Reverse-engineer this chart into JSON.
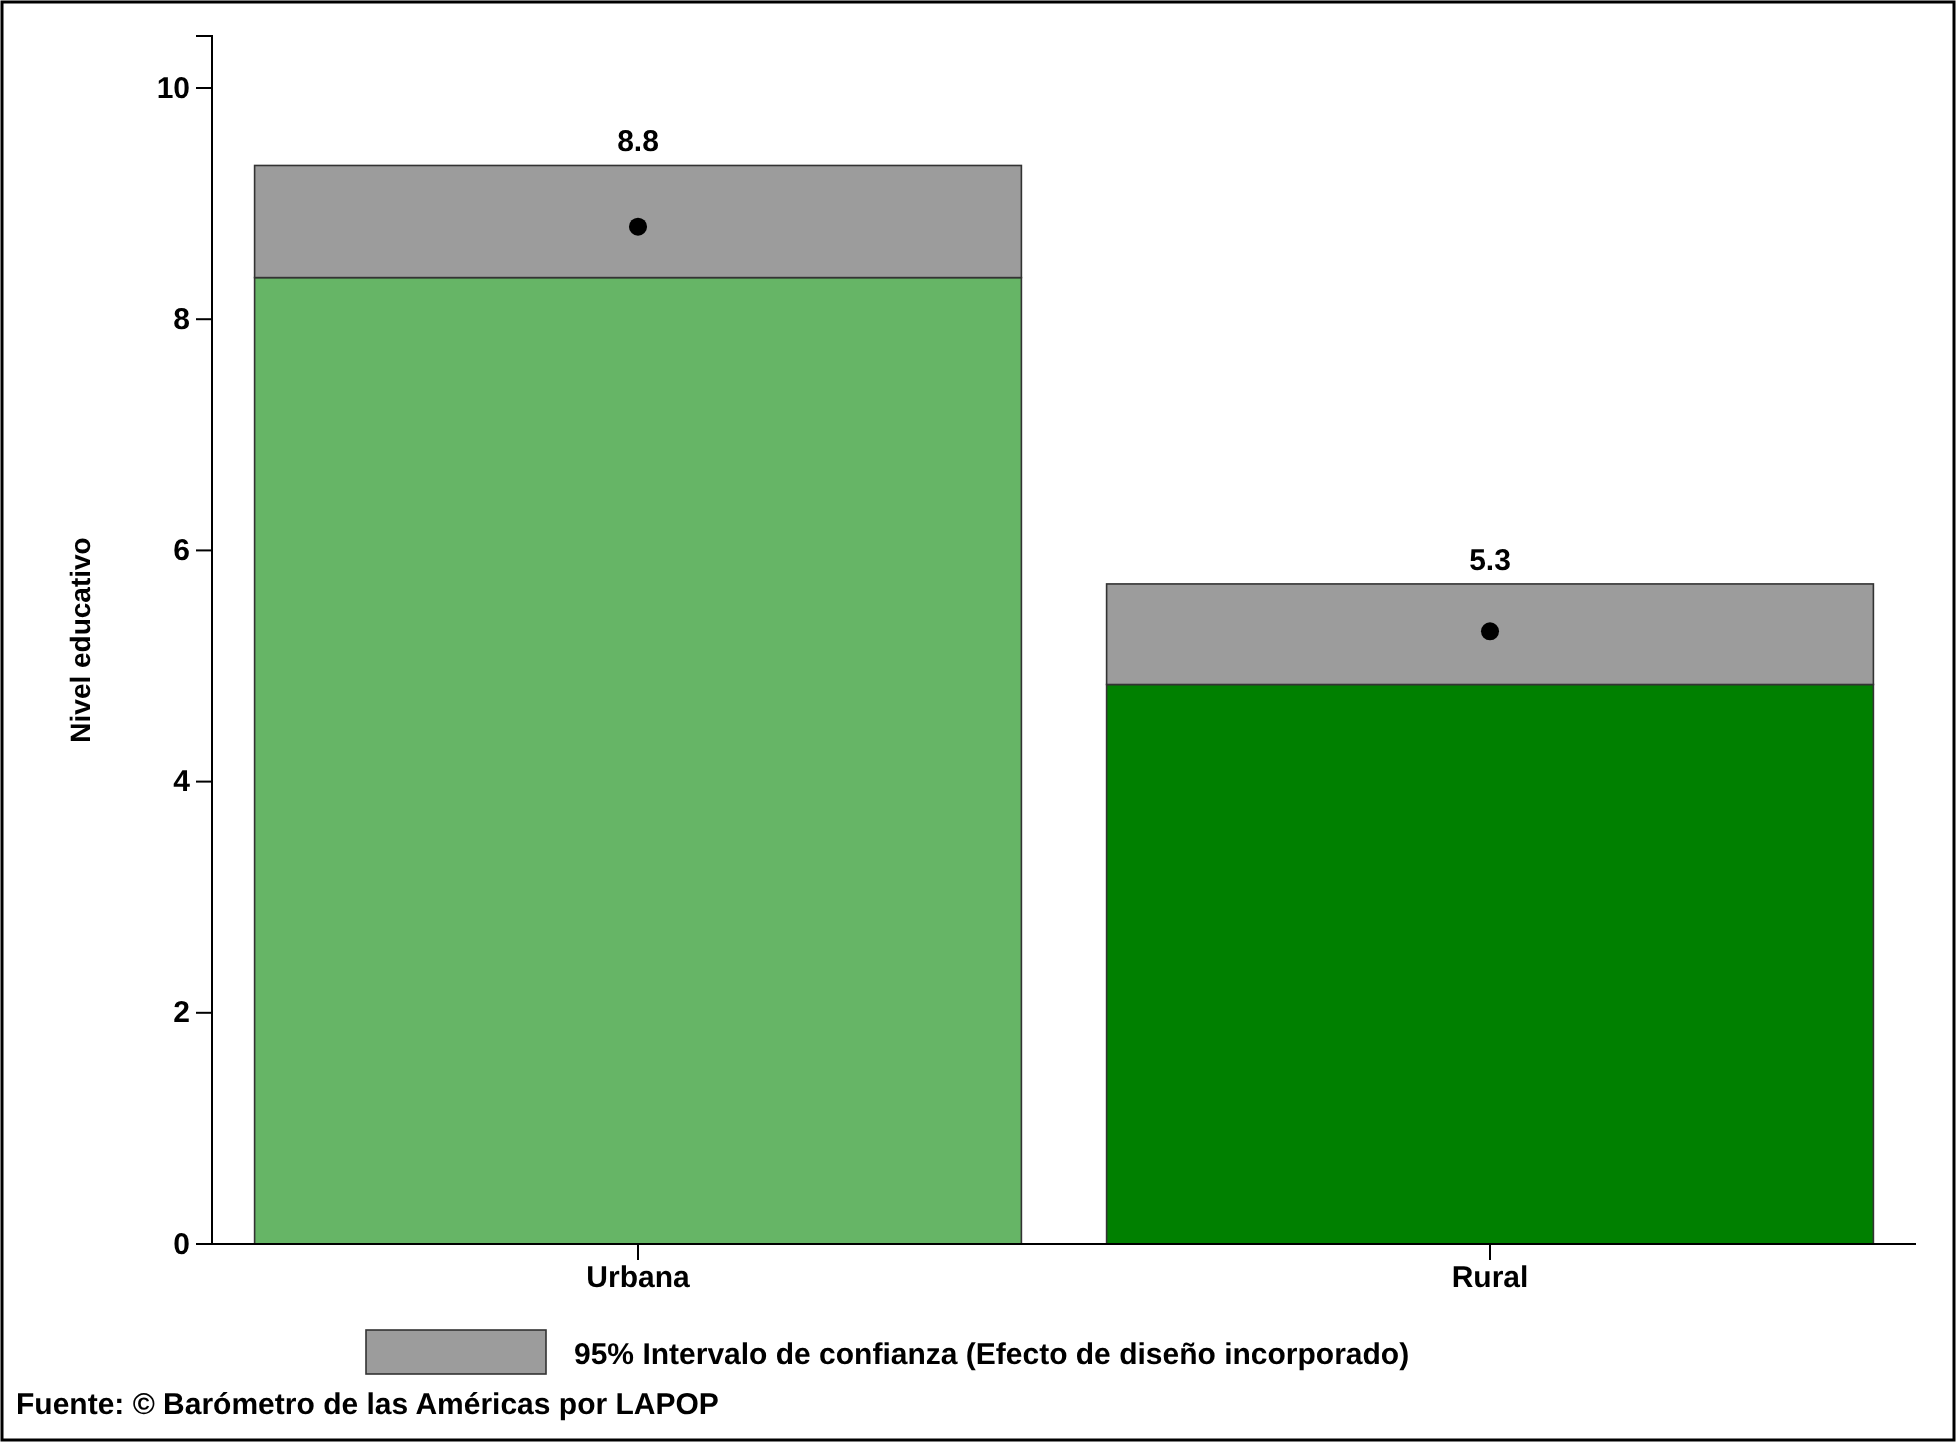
{
  "chart_data": {
    "type": "bar",
    "ylabel": "Nivel educativo",
    "categories": [
      "Urbana",
      "Rural"
    ],
    "stacked": true,
    "series": [
      {
        "colors": [
          "#66b566",
          "#008000"
        ],
        "values": [
          8.36,
          4.84
        ]
      },
      {
        "name": "95% Intervalo de confianza (Efecto de diseño incorporado)",
        "color": "#9c9c9c",
        "values": [
          0.97,
          0.87
        ]
      },
      {
        "type": "scatter",
        "x": [
          "Urbana",
          "Rural"
        ],
        "color": "#000000",
        "marker": "circle",
        "values": [
          8.8,
          5.3
        ],
        "value_labels": [
          "8.8",
          "5.3"
        ]
      }
    ],
    "ylim": [
      0,
      10.45
    ],
    "yticks": [
      0,
      2,
      4,
      6,
      8,
      10
    ],
    "legend": "bottom",
    "annotations": [
      "Fuente: © Barómetro de las Américas por LAPOP"
    ]
  }
}
